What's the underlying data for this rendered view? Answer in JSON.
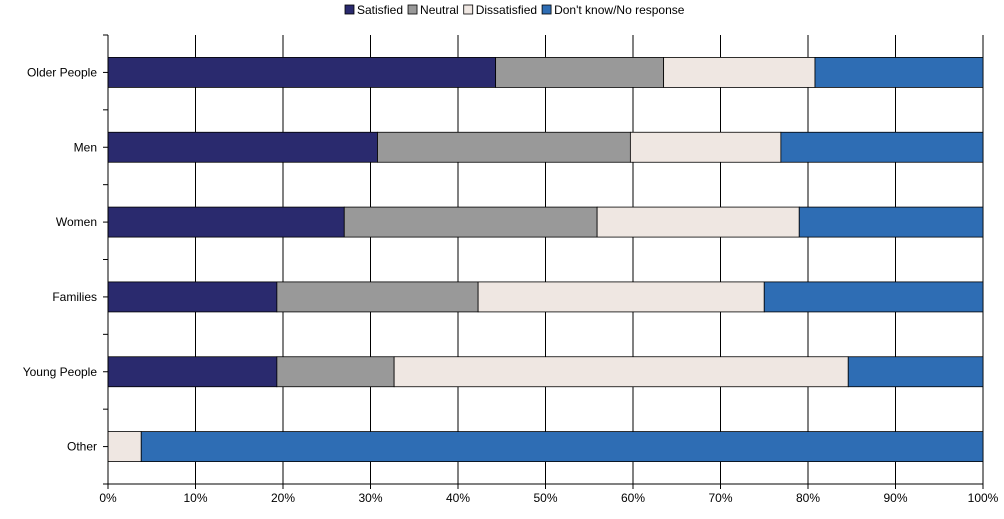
{
  "chart_data": {
    "type": "bar",
    "orientation": "horizontal",
    "stacked": "percent",
    "title": "",
    "xlabel": "",
    "ylabel": "",
    "categories": [
      "Older People",
      "Men",
      "Women",
      "Families",
      "Young People",
      "Other"
    ],
    "series": [
      {
        "name": "Satisfied",
        "color": "#2a2a6e",
        "values": [
          44.3,
          30.8,
          27.0,
          19.3,
          19.3,
          0.0
        ]
      },
      {
        "name": "Neutral",
        "color": "#999999",
        "values": [
          19.2,
          28.9,
          28.9,
          23.0,
          13.4,
          0.0
        ]
      },
      {
        "name": "Dissatisfied",
        "color": "#efe7e2",
        "values": [
          17.3,
          17.2,
          23.1,
          32.7,
          51.9,
          3.8
        ]
      },
      {
        "name": "Don't know/No response",
        "color": "#2e6db4",
        "values": [
          19.2,
          23.1,
          21.0,
          25.0,
          15.4,
          96.2
        ]
      }
    ],
    "xlim": [
      0,
      100
    ],
    "x_ticks": [
      "0%",
      "10%",
      "20%",
      "30%",
      "40%",
      "50%",
      "60%",
      "70%",
      "80%",
      "90%",
      "100%"
    ],
    "grid": "vertical",
    "legend_position": "top"
  }
}
